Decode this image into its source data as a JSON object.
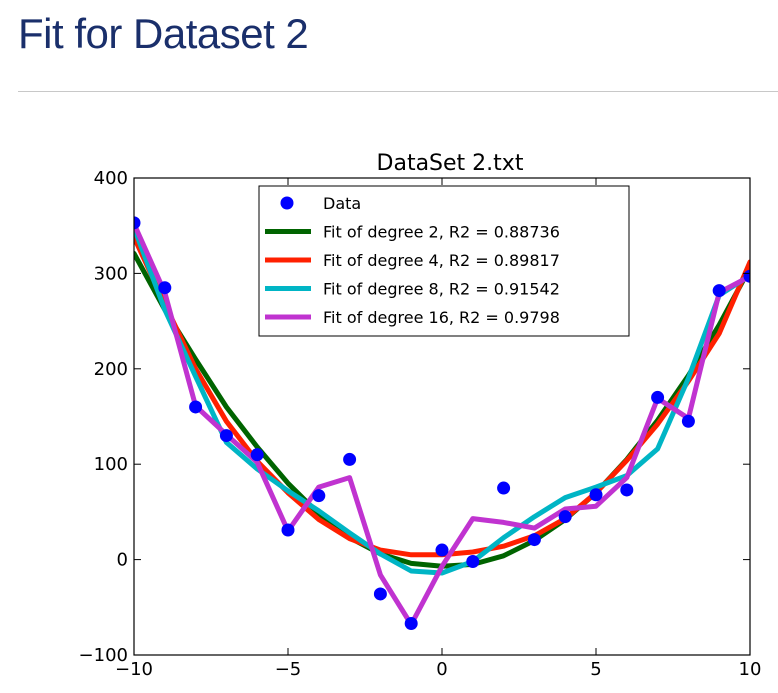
{
  "page": {
    "title": "Fit for Dataset 2"
  },
  "chart_data": {
    "type": "line",
    "title": "DataSet 2.txt",
    "xlim": [
      -10,
      10
    ],
    "ylim": [
      -100,
      400
    ],
    "xticks": [
      -10,
      -5,
      0,
      5,
      10
    ],
    "yticks": [
      -100,
      0,
      100,
      200,
      300,
      400
    ],
    "xtick_labels": [
      "−10",
      "−5",
      "0",
      "5",
      "10"
    ],
    "ytick_labels": [
      "−100",
      "0",
      "100",
      "200",
      "300",
      "400"
    ],
    "legend_position": "top-center",
    "x": [
      -10,
      -9,
      -8,
      -7,
      -6,
      -5,
      -4,
      -3,
      -2,
      -1,
      0,
      1,
      2,
      3,
      4,
      5,
      6,
      7,
      8,
      9,
      10
    ],
    "data": {
      "name": "Data",
      "color": "#0000ff",
      "y": [
        353,
        285,
        160,
        130,
        110,
        31,
        67,
        105,
        -36,
        -67,
        10,
        -2,
        75,
        21,
        45,
        68,
        73,
        170,
        145,
        282,
        297
      ]
    },
    "series": [
      {
        "name": "Fit of degree 2, R2 = 0.88736",
        "color": "#006400",
        "y": [
          321,
          262,
          210,
          160,
          118,
          80,
          48,
          23,
          6,
          -4,
          -7,
          -5,
          4,
          20,
          42,
          70,
          105,
          146,
          193,
          246,
          306
        ]
      },
      {
        "name": "Fit of degree 4, R2 = 0.89817",
        "color": "#ff2000",
        "y": [
          338,
          268,
          200,
          145,
          103,
          70,
          42,
          22,
          10,
          5,
          5,
          8,
          14,
          25,
          43,
          70,
          104,
          142,
          187,
          237,
          312
        ]
      },
      {
        "name": "Fit of degree 8, R2 = 0.91542",
        "color": "#00b5c5",
        "y": [
          348,
          262,
          192,
          123,
          95,
          72,
          51,
          28,
          6,
          -12,
          -14,
          -2,
          23,
          45,
          65,
          76,
          88,
          116,
          190,
          277,
          298
        ]
      },
      {
        "name": "Fit of degree 16, R2 = 0.9798",
        "color": "#c033d0",
        "y": [
          352,
          280,
          161,
          131,
          102,
          30,
          76,
          86,
          -16,
          -68,
          -7,
          43,
          39,
          33,
          53,
          56,
          86,
          169,
          148,
          280,
          297
        ]
      }
    ]
  }
}
